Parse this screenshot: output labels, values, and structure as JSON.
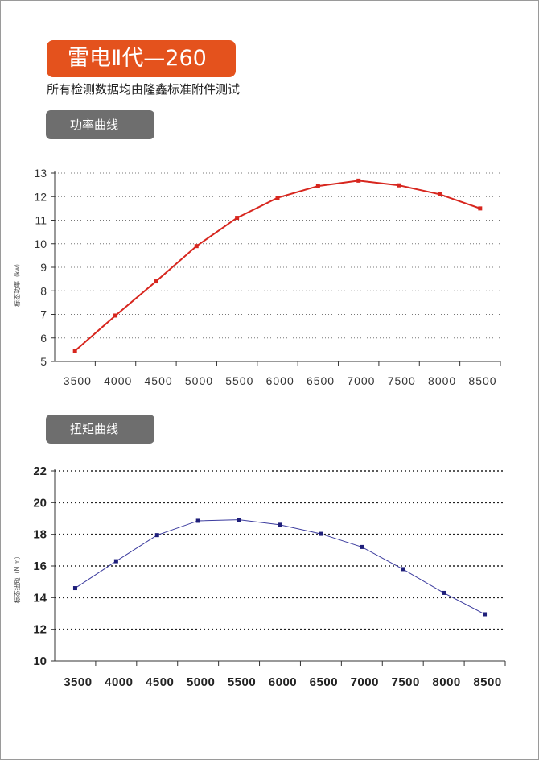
{
  "header": {
    "title": "雷电Ⅱ代—260",
    "subtitle": "所有检测数据均由隆鑫标准附件测试"
  },
  "sections": {
    "power_label": "功率曲线",
    "torque_label": "扭矩曲线"
  },
  "colors": {
    "title_bg": "#e4521d",
    "section_bg": "#6e6e6e",
    "power_line": "#d7261e",
    "torque_line": "#3b3b9e",
    "torque_marker": "#1f1f7a"
  },
  "chart_data": [
    {
      "type": "line",
      "title": "",
      "xlabel": "",
      "ylabel": "标态功率（kw）",
      "categories": [
        "3500",
        "4000",
        "4500",
        "5000",
        "5500",
        "6000",
        "6500",
        "7000",
        "7500",
        "8000",
        "8500"
      ],
      "x": [
        3250,
        3750,
        4250,
        4750,
        5250,
        5750,
        6250,
        6750,
        7250,
        7750,
        8250
      ],
      "series": [
        {
          "values": [
            5.45,
            6.95,
            8.4,
            9.9,
            11.1,
            11.95,
            12.45,
            12.68,
            12.48,
            12.1,
            11.5
          ]
        }
      ],
      "xlim": [
        3000,
        8500
      ],
      "ylim": [
        5,
        13
      ],
      "yticks": [
        "5",
        "6",
        "7",
        "8",
        "9",
        "10",
        "11",
        "12",
        "13"
      ],
      "grid": true
    },
    {
      "type": "line",
      "title": "",
      "xlabel": "",
      "ylabel": "标态扭矩（N.m）",
      "categories": [
        "3500",
        "4000",
        "4500",
        "5000",
        "5500",
        "6000",
        "6500",
        "7000",
        "7500",
        "8000",
        "8500"
      ],
      "x": [
        3250,
        3750,
        4250,
        4750,
        5250,
        5750,
        6250,
        6750,
        7250,
        7750,
        8250
      ],
      "series": [
        {
          "values": [
            14.6,
            16.3,
            17.95,
            18.85,
            18.92,
            18.6,
            18.03,
            17.2,
            15.8,
            14.3,
            12.95
          ]
        }
      ],
      "xlim": [
        3000,
        8500
      ],
      "ylim": [
        10,
        22
      ],
      "yticks": [
        "10",
        "12",
        "14",
        "16",
        "18",
        "20",
        "22"
      ],
      "grid": true
    }
  ]
}
